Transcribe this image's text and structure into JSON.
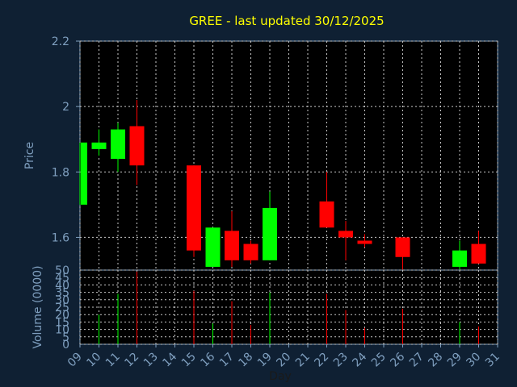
{
  "colors": {
    "background": "#0f2033",
    "plot_background": "#000000",
    "title": "#ffff00",
    "axis_text": "#7f9fbf",
    "frame": "#7f9fbf",
    "grid": "#c8c8c8",
    "up": "#00ff00",
    "down": "#ff0000"
  },
  "chart_data": [
    {
      "type": "candlestick",
      "title": "GREE - last updated 30/12/2025",
      "ylabel": "Price",
      "ylim": [
        1.5,
        2.2
      ],
      "yticks": [
        "1.6",
        "1.8",
        "2",
        "2.2"
      ],
      "ytick_values": [
        1.6,
        1.8,
        2.0,
        2.2
      ],
      "grid": true,
      "x_range": [
        9,
        31
      ],
      "candles": [
        {
          "day": 9,
          "open": 1.7,
          "close": 1.89,
          "high": 1.89,
          "low": 1.7
        },
        {
          "day": 10,
          "open": 1.87,
          "close": 1.89,
          "high": 1.93,
          "low": 1.85
        },
        {
          "day": 11,
          "open": 1.84,
          "close": 1.93,
          "high": 1.95,
          "low": 1.8
        },
        {
          "day": 12,
          "open": 1.94,
          "close": 1.82,
          "high": 2.02,
          "low": 1.76
        },
        {
          "day": 15,
          "open": 1.82,
          "close": 1.56,
          "high": 1.82,
          "low": 1.54
        },
        {
          "day": 16,
          "open": 1.51,
          "close": 1.63,
          "high": 1.63,
          "low": 1.51
        },
        {
          "day": 17,
          "open": 1.62,
          "close": 1.53,
          "high": 1.68,
          "low": 1.51
        },
        {
          "day": 18,
          "open": 1.58,
          "close": 1.53,
          "high": 1.59,
          "low": 1.52
        },
        {
          "day": 19,
          "open": 1.53,
          "close": 1.69,
          "high": 1.74,
          "low": 1.53
        },
        {
          "day": 22,
          "open": 1.71,
          "close": 1.63,
          "high": 1.8,
          "low": 1.63
        },
        {
          "day": 23,
          "open": 1.62,
          "close": 1.6,
          "high": 1.65,
          "low": 1.53
        },
        {
          "day": 24,
          "open": 1.59,
          "close": 1.58,
          "high": 1.61,
          "low": 1.57
        },
        {
          "day": 26,
          "open": 1.6,
          "close": 1.54,
          "high": 1.6,
          "low": 1.5
        },
        {
          "day": 29,
          "open": 1.51,
          "close": 1.56,
          "high": 1.59,
          "low": 1.5
        },
        {
          "day": 30,
          "open": 1.58,
          "close": 1.52,
          "high": 1.62,
          "low": 1.52
        }
      ]
    },
    {
      "type": "bar",
      "ylabel": "Volume (0000)",
      "xlabel": "Day",
      "ylim": [
        0,
        50
      ],
      "yticks": [
        "0",
        "5",
        "10",
        "15",
        "20",
        "25",
        "30",
        "35",
        "40",
        "45",
        "50"
      ],
      "ytick_values": [
        0,
        5,
        10,
        15,
        20,
        25,
        30,
        35,
        40,
        45,
        50
      ],
      "x_range": [
        9,
        31
      ],
      "xticks": [
        "09",
        "10",
        "11",
        "12",
        "13",
        "14",
        "15",
        "16",
        "17",
        "18",
        "19",
        "20",
        "21",
        "22",
        "23",
        "24",
        "25",
        "26",
        "27",
        "28",
        "29",
        "30",
        "31"
      ],
      "xtick_values": [
        9,
        10,
        11,
        12,
        13,
        14,
        15,
        16,
        17,
        18,
        19,
        20,
        21,
        22,
        23,
        24,
        25,
        26,
        27,
        28,
        29,
        30,
        31
      ],
      "bars": [
        {
          "day": 10,
          "value": 20,
          "direction": "up"
        },
        {
          "day": 11,
          "value": 34,
          "direction": "up"
        },
        {
          "day": 12,
          "value": 49,
          "direction": "down"
        },
        {
          "day": 15,
          "value": 36,
          "direction": "down"
        },
        {
          "day": 16,
          "value": 14,
          "direction": "up"
        },
        {
          "day": 17,
          "value": 29,
          "direction": "down"
        },
        {
          "day": 18,
          "value": 13,
          "direction": "down"
        },
        {
          "day": 19,
          "value": 35,
          "direction": "up"
        },
        {
          "day": 22,
          "value": 34,
          "direction": "down"
        },
        {
          "day": 23,
          "value": 23,
          "direction": "down"
        },
        {
          "day": 24,
          "value": 11,
          "direction": "down"
        },
        {
          "day": 26,
          "value": 24,
          "direction": "down"
        },
        {
          "day": 29,
          "value": 15,
          "direction": "up"
        },
        {
          "day": 30,
          "value": 12,
          "direction": "down"
        }
      ]
    }
  ]
}
